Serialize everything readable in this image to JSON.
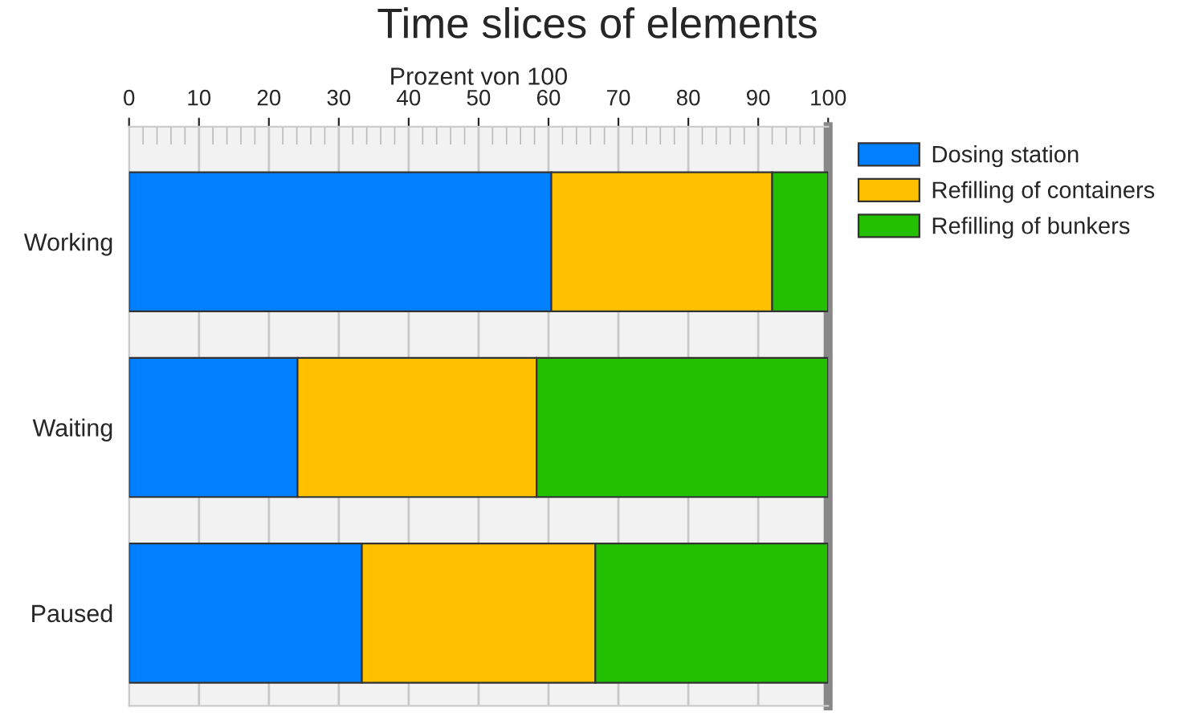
{
  "chart_data": {
    "type": "bar",
    "orientation": "horizontal",
    "stacked": true,
    "title": "Time slices of elements",
    "xlabel": "Prozent von 100",
    "categories": [
      "Working",
      "Waiting",
      "Paused"
    ],
    "series": [
      {
        "name": "Dosing station",
        "color": "#0080ff",
        "values": [
          60.4,
          24.1,
          33.3
        ]
      },
      {
        "name": "Refilling of containers",
        "color": "#ffc000",
        "values": [
          31.6,
          34.2,
          33.4
        ]
      },
      {
        "name": "Refilling of bunkers",
        "color": "#22c000",
        "values": [
          8.0,
          41.7,
          33.3
        ]
      }
    ],
    "xlim": [
      0,
      100
    ],
    "xticks": [
      0,
      10,
      20,
      30,
      40,
      50,
      60,
      70,
      80,
      90,
      100
    ],
    "grid": "x",
    "legend": "top right"
  }
}
